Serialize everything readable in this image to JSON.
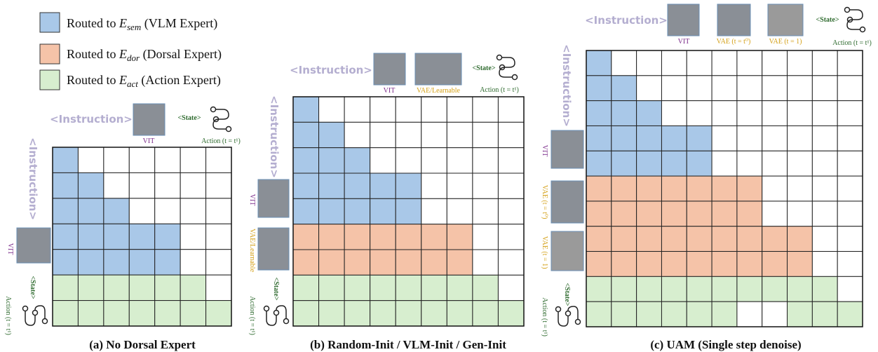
{
  "legend": [
    {
      "prefix": "Routed to",
      "symbol": "E",
      "sub": "sem",
      "suffix": "(VLM Expert)"
    },
    {
      "prefix": "Routed to",
      "symbol": "E",
      "sub": "dor",
      "suffix": "(Dorsal Expert)"
    },
    {
      "prefix": "Routed to",
      "symbol": "E",
      "sub": "act",
      "suffix": "(Action Expert)"
    }
  ],
  "panels": [
    {
      "caption": "(a) No Dorsal Expert",
      "top": [
        "<Instruction>",
        "VIT",
        "<State>",
        "Action (t = t¹)"
      ],
      "left": [
        "<Instruction>",
        "VIT",
        "<State>",
        "Action (t = t¹)"
      ]
    },
    {
      "caption": "(b) Random-Init / VLM-Init / Gen-Init",
      "top": [
        "<Instruction>",
        "VIT",
        "VAE/Learnable",
        "<State>",
        "Action (t = t¹)"
      ],
      "left": [
        "<Instruction>",
        "VIT",
        "VAE/Learnable",
        "<State>",
        "Action (t = t¹)"
      ]
    },
    {
      "caption": "(c) UAM (Single step denoise)",
      "top": [
        "<Instruction>",
        "VIT",
        "VAE (t = t⁰)",
        "VAE (t = 1)",
        "<State>",
        "Action (t = t¹)"
      ],
      "left": [
        "<Instruction>",
        "VIT",
        "VAE (t = t⁰)",
        "VAE (t = 1)",
        "<State>",
        "Action (t = t¹)"
      ]
    }
  ]
}
